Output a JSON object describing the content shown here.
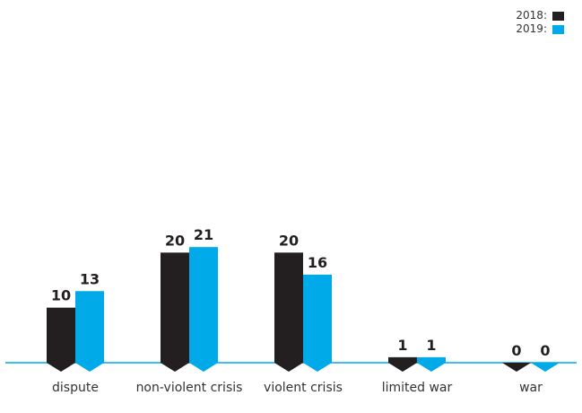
{
  "chart_data": {
    "type": "bar",
    "categories": [
      "dispute",
      "non-violent crisis",
      "violent crisis",
      "limited war",
      "war"
    ],
    "series": [
      {
        "name": "2018:",
        "values": [
          10,
          20,
          20,
          1,
          0
        ],
        "color": "#231f20"
      },
      {
        "name": "2019:",
        "values": [
          13,
          21,
          16,
          1,
          0
        ],
        "color": "#00a9e8"
      }
    ],
    "ylim": [
      0,
      60
    ],
    "grid": false,
    "legend_position": "top-right",
    "axis_color": "#00a9e8"
  }
}
